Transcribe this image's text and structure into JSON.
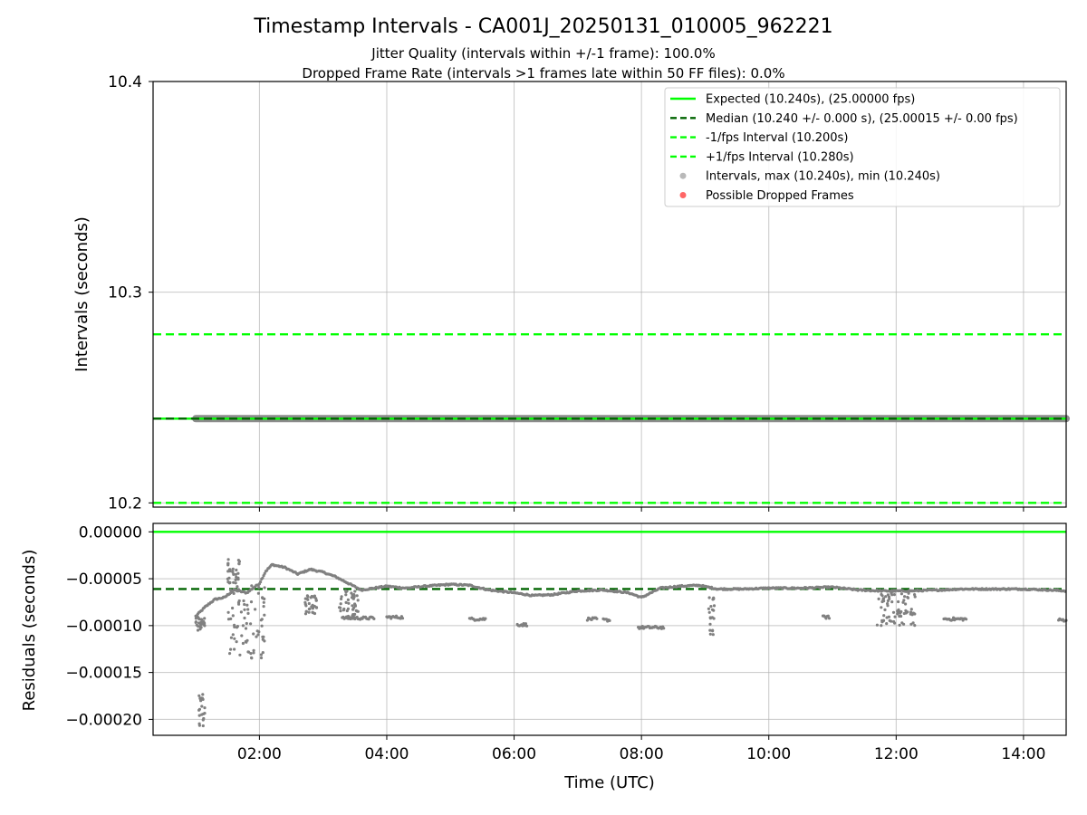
{
  "title": "Timestamp Intervals - CA001J_20250131_010005_962221",
  "subtitle_lines": [
    "Jitter Quality (intervals within +/-1 frame): 100.0%",
    "Dropped Frame Rate (intervals >1 frames late within 50 FF files): 0.0%"
  ],
  "colors": {
    "expected": "#00ff00",
    "median": "#006400",
    "bounds": "#00ff00",
    "intervals": "#808080",
    "dropped": "#ff0000",
    "grid": "#b0b0b0"
  },
  "chart_data": [
    {
      "type": "line",
      "panel": "top",
      "ylabel": "Intervals (seconds)",
      "ylim": [
        10.198,
        10.4
      ],
      "yticks": [
        10.2,
        10.3,
        10.4
      ],
      "ytick_labels": [
        "10.2",
        "10.3",
        "10.4"
      ],
      "xlim_hours": [
        0.33,
        14.67
      ],
      "xticks_hours": [
        2,
        4,
        6,
        8,
        10,
        12,
        14
      ],
      "grid": true,
      "legend_position": "top-right",
      "legend": [
        {
          "label": "Expected (10.240s), (25.00000 fps)",
          "style": "solid",
          "color": "#00ff00"
        },
        {
          "label": "Median (10.240 +/- 0.000 s), (25.00015 +/- 0.00 fps)",
          "style": "dashed",
          "color": "#006400"
        },
        {
          "label": "-1/fps Interval (10.200s)",
          "style": "dashed",
          "color": "#00ff00"
        },
        {
          "label": "+1/fps Interval (10.280s)",
          "style": "dashed",
          "color": "#00ff00"
        },
        {
          "label": "Intervals, max (10.240s), min (10.240s)",
          "style": "marker",
          "color": "#808080"
        },
        {
          "label": "Possible Dropped Frames",
          "style": "marker",
          "color": "#ff0000"
        }
      ],
      "hlines": [
        {
          "name": "Expected (10.240s), (25.00000 fps)",
          "y": 10.24,
          "style": "solid",
          "color": "#00ff00"
        },
        {
          "name": "Median (10.240 +/- 0.000 s), (25.00015 +/- 0.00 fps)",
          "y": 10.24,
          "style": "dashed",
          "color": "#006400"
        },
        {
          "name": "-1/fps Interval (10.200s)",
          "y": 10.2,
          "style": "dashed",
          "color": "#00ff00"
        },
        {
          "name": "+1/fps Interval (10.280s)",
          "y": 10.28,
          "style": "dashed",
          "color": "#00ff00"
        }
      ],
      "series": [
        {
          "name": "Intervals, max (10.240s), min (10.240s)",
          "x_hours_range": [
            1.0,
            14.67
          ],
          "y": 10.24
        }
      ]
    },
    {
      "type": "scatter",
      "panel": "bottom",
      "xlabel": "Time (UTC)",
      "ylabel": "Residuals (seconds)",
      "ylim": [
        -0.000217,
        9e-06
      ],
      "yticks": [
        0.0,
        -5e-05,
        -0.0001,
        -0.00015,
        -0.0002
      ],
      "ytick_labels": [
        "0.00000",
        "−0.00005",
        "−0.00010",
        "−0.00015",
        "−0.00020"
      ],
      "xlim_hours": [
        0.33,
        14.67
      ],
      "xticks_hours": [
        2,
        4,
        6,
        8,
        10,
        12,
        14
      ],
      "xtick_labels": [
        "02:00",
        "04:00",
        "06:00",
        "08:00",
        "10:00",
        "12:00",
        "14:00"
      ],
      "grid": true,
      "hlines": [
        {
          "y": 0.0,
          "style": "solid",
          "color": "#00ff00"
        },
        {
          "y": -6.1e-05,
          "style": "dashed",
          "color": "#006400"
        }
      ],
      "main_trend": [
        [
          1.0,
          -9e-05
        ],
        [
          1.15,
          -8e-05
        ],
        [
          1.3,
          -7.2e-05
        ],
        [
          1.45,
          -7e-05
        ],
        [
          1.6,
          -6.2e-05
        ],
        [
          1.8,
          -6.5e-05
        ],
        [
          2.0,
          -5.5e-05
        ],
        [
          2.1,
          -4.2e-05
        ],
        [
          2.2,
          -3.5e-05
        ],
        [
          2.4,
          -3.8e-05
        ],
        [
          2.6,
          -4.5e-05
        ],
        [
          2.8,
          -4e-05
        ],
        [
          3.0,
          -4.3e-05
        ],
        [
          3.2,
          -4.8e-05
        ],
        [
          3.4,
          -5.5e-05
        ],
        [
          3.6,
          -6.2e-05
        ],
        [
          3.8,
          -6e-05
        ],
        [
          4.0,
          -5.8e-05
        ],
        [
          4.3,
          -6e-05
        ],
        [
          4.6,
          -5.8e-05
        ],
        [
          5.0,
          -5.6e-05
        ],
        [
          5.3,
          -5.7e-05
        ],
        [
          5.6,
          -6.2e-05
        ],
        [
          6.0,
          -6.5e-05
        ],
        [
          6.3,
          -6.8e-05
        ],
        [
          6.6,
          -6.7e-05
        ],
        [
          7.0,
          -6.3e-05
        ],
        [
          7.4,
          -6.2e-05
        ],
        [
          7.8,
          -6.5e-05
        ],
        [
          8.0,
          -7e-05
        ],
        [
          8.3,
          -6e-05
        ],
        [
          8.6,
          -5.8e-05
        ],
        [
          8.9,
          -5.7e-05
        ],
        [
          9.2,
          -6.1e-05
        ],
        [
          9.6,
          -6.1e-05
        ],
        [
          10.0,
          -6e-05
        ],
        [
          10.5,
          -6e-05
        ],
        [
          11.0,
          -5.9e-05
        ],
        [
          11.4,
          -6.2e-05
        ],
        [
          11.8,
          -6.3e-05
        ],
        [
          12.2,
          -6.3e-05
        ],
        [
          12.7,
          -6.2e-05
        ],
        [
          13.0,
          -6.1e-05
        ],
        [
          13.5,
          -6.1e-05
        ],
        [
          14.0,
          -6.1e-05
        ],
        [
          14.4,
          -6.2e-05
        ],
        [
          14.67,
          -6.3e-05
        ]
      ],
      "secondary_segments": [
        {
          "x": [
            3.3,
            3.8
          ],
          "y": -9.2e-05
        },
        {
          "x": [
            4.0,
            4.25
          ],
          "y": -9.1e-05
        },
        {
          "x": [
            5.3,
            5.55
          ],
          "y": -9.3e-05
        },
        {
          "x": [
            6.05,
            6.2
          ],
          "y": -9.9e-05
        },
        {
          "x": [
            7.15,
            7.3
          ],
          "y": -9.3e-05
        },
        {
          "x": [
            7.4,
            7.5
          ],
          "y": -9.4e-05
        },
        {
          "x": [
            7.95,
            8.35
          ],
          "y": -0.000102
        },
        {
          "x": [
            10.85,
            10.95
          ],
          "y": -9.1e-05
        },
        {
          "x": [
            12.75,
            13.1
          ],
          "y": -9.3e-05
        },
        {
          "x": [
            14.55,
            14.67
          ],
          "y": -9.4e-05
        }
      ],
      "scattered_clusters": [
        {
          "x": [
            1.0,
            1.15
          ],
          "y": [
            -0.000105,
            -9e-05
          ]
        },
        {
          "x": [
            1.05,
            1.15
          ],
          "y": [
            -0.00021,
            -0.000172
          ]
        },
        {
          "x": [
            1.5,
            2.1
          ],
          "y": [
            -0.000135,
            -5.5e-05
          ]
        },
        {
          "x": [
            1.5,
            1.7
          ],
          "y": [
            -5.5e-05,
            -2.8e-05
          ]
        },
        {
          "x": [
            2.7,
            2.9
          ],
          "y": [
            -8.8e-05,
            -6.8e-05
          ]
        },
        {
          "x": [
            3.25,
            3.55
          ],
          "y": [
            -9e-05,
            -6e-05
          ]
        },
        {
          "x": [
            11.7,
            12.3
          ],
          "y": [
            -0.0001,
            -6.2e-05
          ]
        },
        {
          "x": [
            9.05,
            9.15
          ],
          "y": [
            -0.00011,
            -7e-05
          ]
        }
      ]
    }
  ]
}
